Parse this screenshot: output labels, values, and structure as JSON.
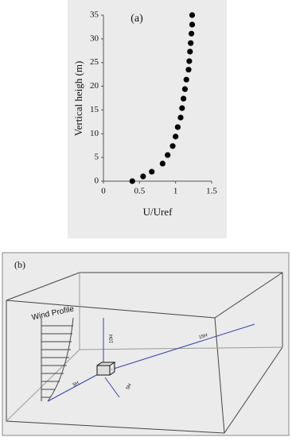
{
  "chart_data": {
    "type": "scatter",
    "annotation": "(a)",
    "x_label": "U/Uref",
    "y_label": "Vertical heigh  (m)",
    "x": [
      0.4,
      0.55,
      0.67,
      0.82,
      0.89,
      0.96,
      1.0,
      1.03,
      1.07,
      1.09,
      1.11,
      1.13,
      1.15,
      1.18,
      1.19,
      1.2,
      1.21,
      1.22,
      1.23,
      1.23
    ],
    "values": [
      0,
      1,
      2,
      3.7,
      5.5,
      7.4,
      9.4,
      11.4,
      13.4,
      15.4,
      17.4,
      19.4,
      21.4,
      23.5,
      25.3,
      27.3,
      29.1,
      31.1,
      33,
      35
    ],
    "color": "#000000",
    "xlim": [
      0,
      1.5
    ],
    "xticks": [
      0,
      0.5,
      1,
      1.5
    ],
    "ylim": [
      0,
      35
    ],
    "yticks": [
      0,
      5,
      10,
      15,
      20,
      25,
      30,
      35
    ]
  },
  "diagram": {
    "label": "(b)",
    "wind_profile": "Wind Profile",
    "dims": [
      "10H",
      "15H",
      "5H",
      "5H"
    ]
  }
}
